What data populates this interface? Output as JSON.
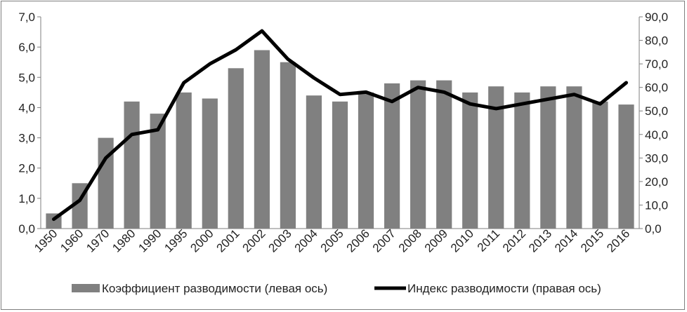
{
  "chart_data": {
    "type": "bar+line",
    "categories": [
      "1950",
      "1960",
      "1970",
      "1980",
      "1990",
      "1995",
      "2000",
      "2001",
      "2002",
      "2003",
      "2004",
      "2005",
      "2006",
      "2007",
      "2008",
      "2009",
      "2010",
      "2011",
      "2012",
      "2013",
      "2014",
      "2015",
      "2016"
    ],
    "series": [
      {
        "name": "Коэффициент разводимости (левая ось)",
        "type": "bar",
        "axis": "left",
        "color": "#808080",
        "values": [
          0.5,
          1.5,
          3.0,
          4.2,
          3.8,
          4.5,
          4.3,
          5.3,
          5.9,
          5.5,
          4.4,
          4.2,
          4.5,
          4.8,
          4.9,
          4.9,
          4.5,
          4.7,
          4.5,
          4.7,
          4.7,
          4.2,
          4.1
        ]
      },
      {
        "name": "Индекс разводимости (правая ось)",
        "type": "line",
        "axis": "right",
        "color": "#000000",
        "values": [
          4,
          12,
          30,
          40,
          42,
          62,
          70,
          76,
          84,
          72,
          64,
          57,
          58,
          54,
          60,
          58,
          53,
          51,
          53,
          55,
          57,
          53,
          62
        ]
      }
    ],
    "y_left": {
      "min": 0,
      "max": 7,
      "step": 1,
      "tick_labels": [
        "0,0",
        "1,0",
        "2,0",
        "3,0",
        "4,0",
        "5,0",
        "6,0",
        "7,0"
      ]
    },
    "y_right": {
      "min": 0,
      "max": 90,
      "step": 10,
      "tick_labels": [
        "0,0",
        "10,0",
        "20,0",
        "30,0",
        "40,0",
        "50,0",
        "60,0",
        "70,0",
        "80,0",
        "90,0"
      ]
    },
    "grid": false,
    "legend_position": "bottom"
  }
}
